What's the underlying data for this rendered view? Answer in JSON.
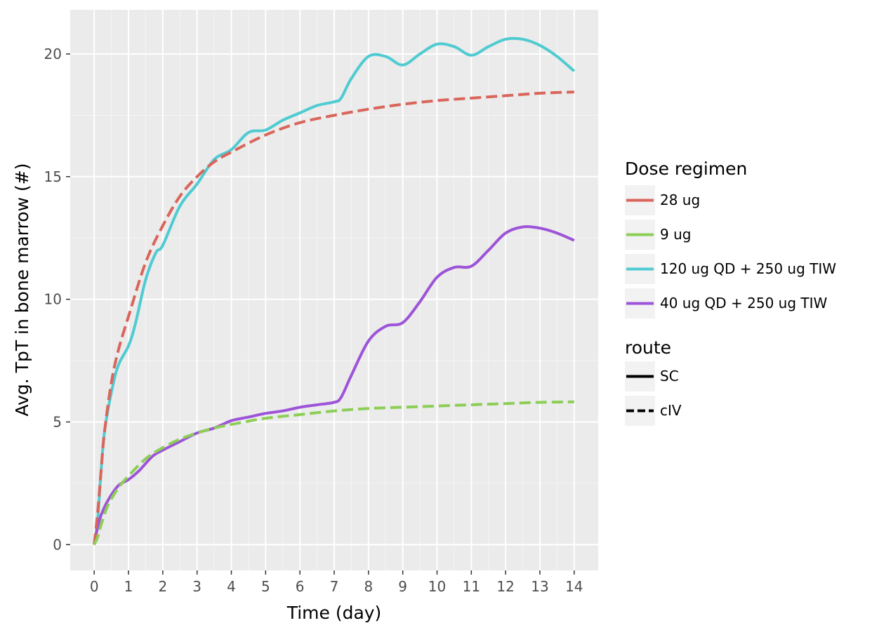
{
  "chart_data": {
    "type": "line",
    "xlabel": "Time (day)",
    "ylabel": "Avg. TpT in bone marrow (#)",
    "xlim": [
      -0.7,
      14.7
    ],
    "ylim": [
      -1.05,
      21.8
    ],
    "x_ticks": [
      0,
      1,
      2,
      3,
      4,
      5,
      6,
      7,
      8,
      9,
      10,
      11,
      12,
      13,
      14
    ],
    "y_ticks": [
      0,
      5,
      10,
      15,
      20
    ],
    "grid": true,
    "legend_placement": "right",
    "legend_dose_title": "Dose regimen",
    "legend_route_title": "route",
    "dose_legend": [
      {
        "label": "28 ug",
        "color": "#d9655b",
        "key": "d28"
      },
      {
        "label": "9 ug",
        "color": "#8cce56",
        "key": "d9"
      },
      {
        "label": "120 ug QD + 250 ug TIW",
        "color": "#4fcbd1",
        "key": "d120"
      },
      {
        "label": "40 ug QD + 250 ug TIW",
        "color": "#9d54d8",
        "key": "d40"
      }
    ],
    "route_legend": [
      {
        "label": "SC",
        "dash": "solid"
      },
      {
        "label": "cIV",
        "dash": "dashed"
      }
    ],
    "series": [
      {
        "key": "d28",
        "dose": "28 ug",
        "route": "cIV",
        "color": "#d9655b",
        "dashed": true,
        "x": [
          0,
          0.1,
          0.2,
          0.3,
          0.5,
          0.7,
          1,
          1.5,
          2,
          2.5,
          3,
          3.5,
          4,
          5,
          6,
          7,
          8,
          9,
          10,
          11,
          12,
          13,
          14
        ],
        "y": [
          0,
          1.3,
          3.0,
          4.6,
          6.6,
          7.9,
          9.3,
          11.5,
          13.0,
          14.2,
          15.0,
          15.6,
          16.0,
          16.7,
          17.2,
          17.5,
          17.75,
          17.95,
          18.1,
          18.2,
          18.3,
          18.4,
          18.45
        ]
      },
      {
        "key": "d9",
        "dose": "9 ug",
        "route": "cIV",
        "color": "#8cce56",
        "dashed": true,
        "x": [
          0,
          0.1,
          0.2,
          0.4,
          0.7,
          1,
          1.5,
          2,
          2.5,
          3,
          3.5,
          4,
          5,
          6,
          7,
          8,
          9,
          10,
          11,
          12,
          13,
          14
        ],
        "y": [
          0,
          0.3,
          0.8,
          1.6,
          2.3,
          2.8,
          3.5,
          3.95,
          4.3,
          4.55,
          4.75,
          4.9,
          5.15,
          5.3,
          5.45,
          5.55,
          5.6,
          5.65,
          5.7,
          5.75,
          5.8,
          5.82
        ]
      },
      {
        "key": "d120",
        "dose": "120 ug QD + 250 ug TIW",
        "route": "SC",
        "color": "#4fcbd1",
        "dashed": false,
        "x": [
          0,
          0.1,
          0.2,
          0.3,
          0.5,
          0.7,
          1,
          1.2,
          1.5,
          1.8,
          2,
          2.5,
          3,
          3.5,
          4,
          4.5,
          5,
          5.5,
          6,
          6.5,
          7,
          7.2,
          7.5,
          8,
          8.5,
          9,
          9.5,
          10,
          10.5,
          11,
          11.5,
          12,
          12.5,
          13,
          13.5,
          14
        ],
        "y": [
          0,
          1.0,
          3.0,
          4.6,
          6.2,
          7.3,
          8.1,
          9.0,
          10.8,
          11.9,
          12.2,
          13.8,
          14.7,
          15.7,
          16.1,
          16.8,
          16.9,
          17.3,
          17.6,
          17.9,
          18.05,
          18.2,
          19.0,
          19.9,
          19.9,
          19.55,
          20.0,
          20.4,
          20.3,
          19.95,
          20.3,
          20.6,
          20.6,
          20.35,
          19.9,
          19.3
        ]
      },
      {
        "key": "d40",
        "dose": "40 ug QD + 250 ug TIW",
        "route": "SC",
        "color": "#9d54d8",
        "dashed": false,
        "x": [
          0,
          0.1,
          0.2,
          0.4,
          0.7,
          1,
          1.3,
          1.7,
          2,
          2.5,
          3,
          3.5,
          4,
          4.5,
          5,
          5.5,
          6,
          6.5,
          7,
          7.2,
          7.5,
          8,
          8.5,
          9,
          9.5,
          10,
          10.5,
          11,
          11.5,
          12,
          12.5,
          13,
          13.5,
          14
        ],
        "y": [
          0,
          0.7,
          1.2,
          1.8,
          2.4,
          2.65,
          3.0,
          3.6,
          3.85,
          4.2,
          4.55,
          4.75,
          5.05,
          5.2,
          5.35,
          5.45,
          5.6,
          5.7,
          5.8,
          6.0,
          6.9,
          8.3,
          8.9,
          9.05,
          9.9,
          10.9,
          11.3,
          11.35,
          12.0,
          12.7,
          12.95,
          12.9,
          12.7,
          12.4
        ]
      }
    ]
  }
}
